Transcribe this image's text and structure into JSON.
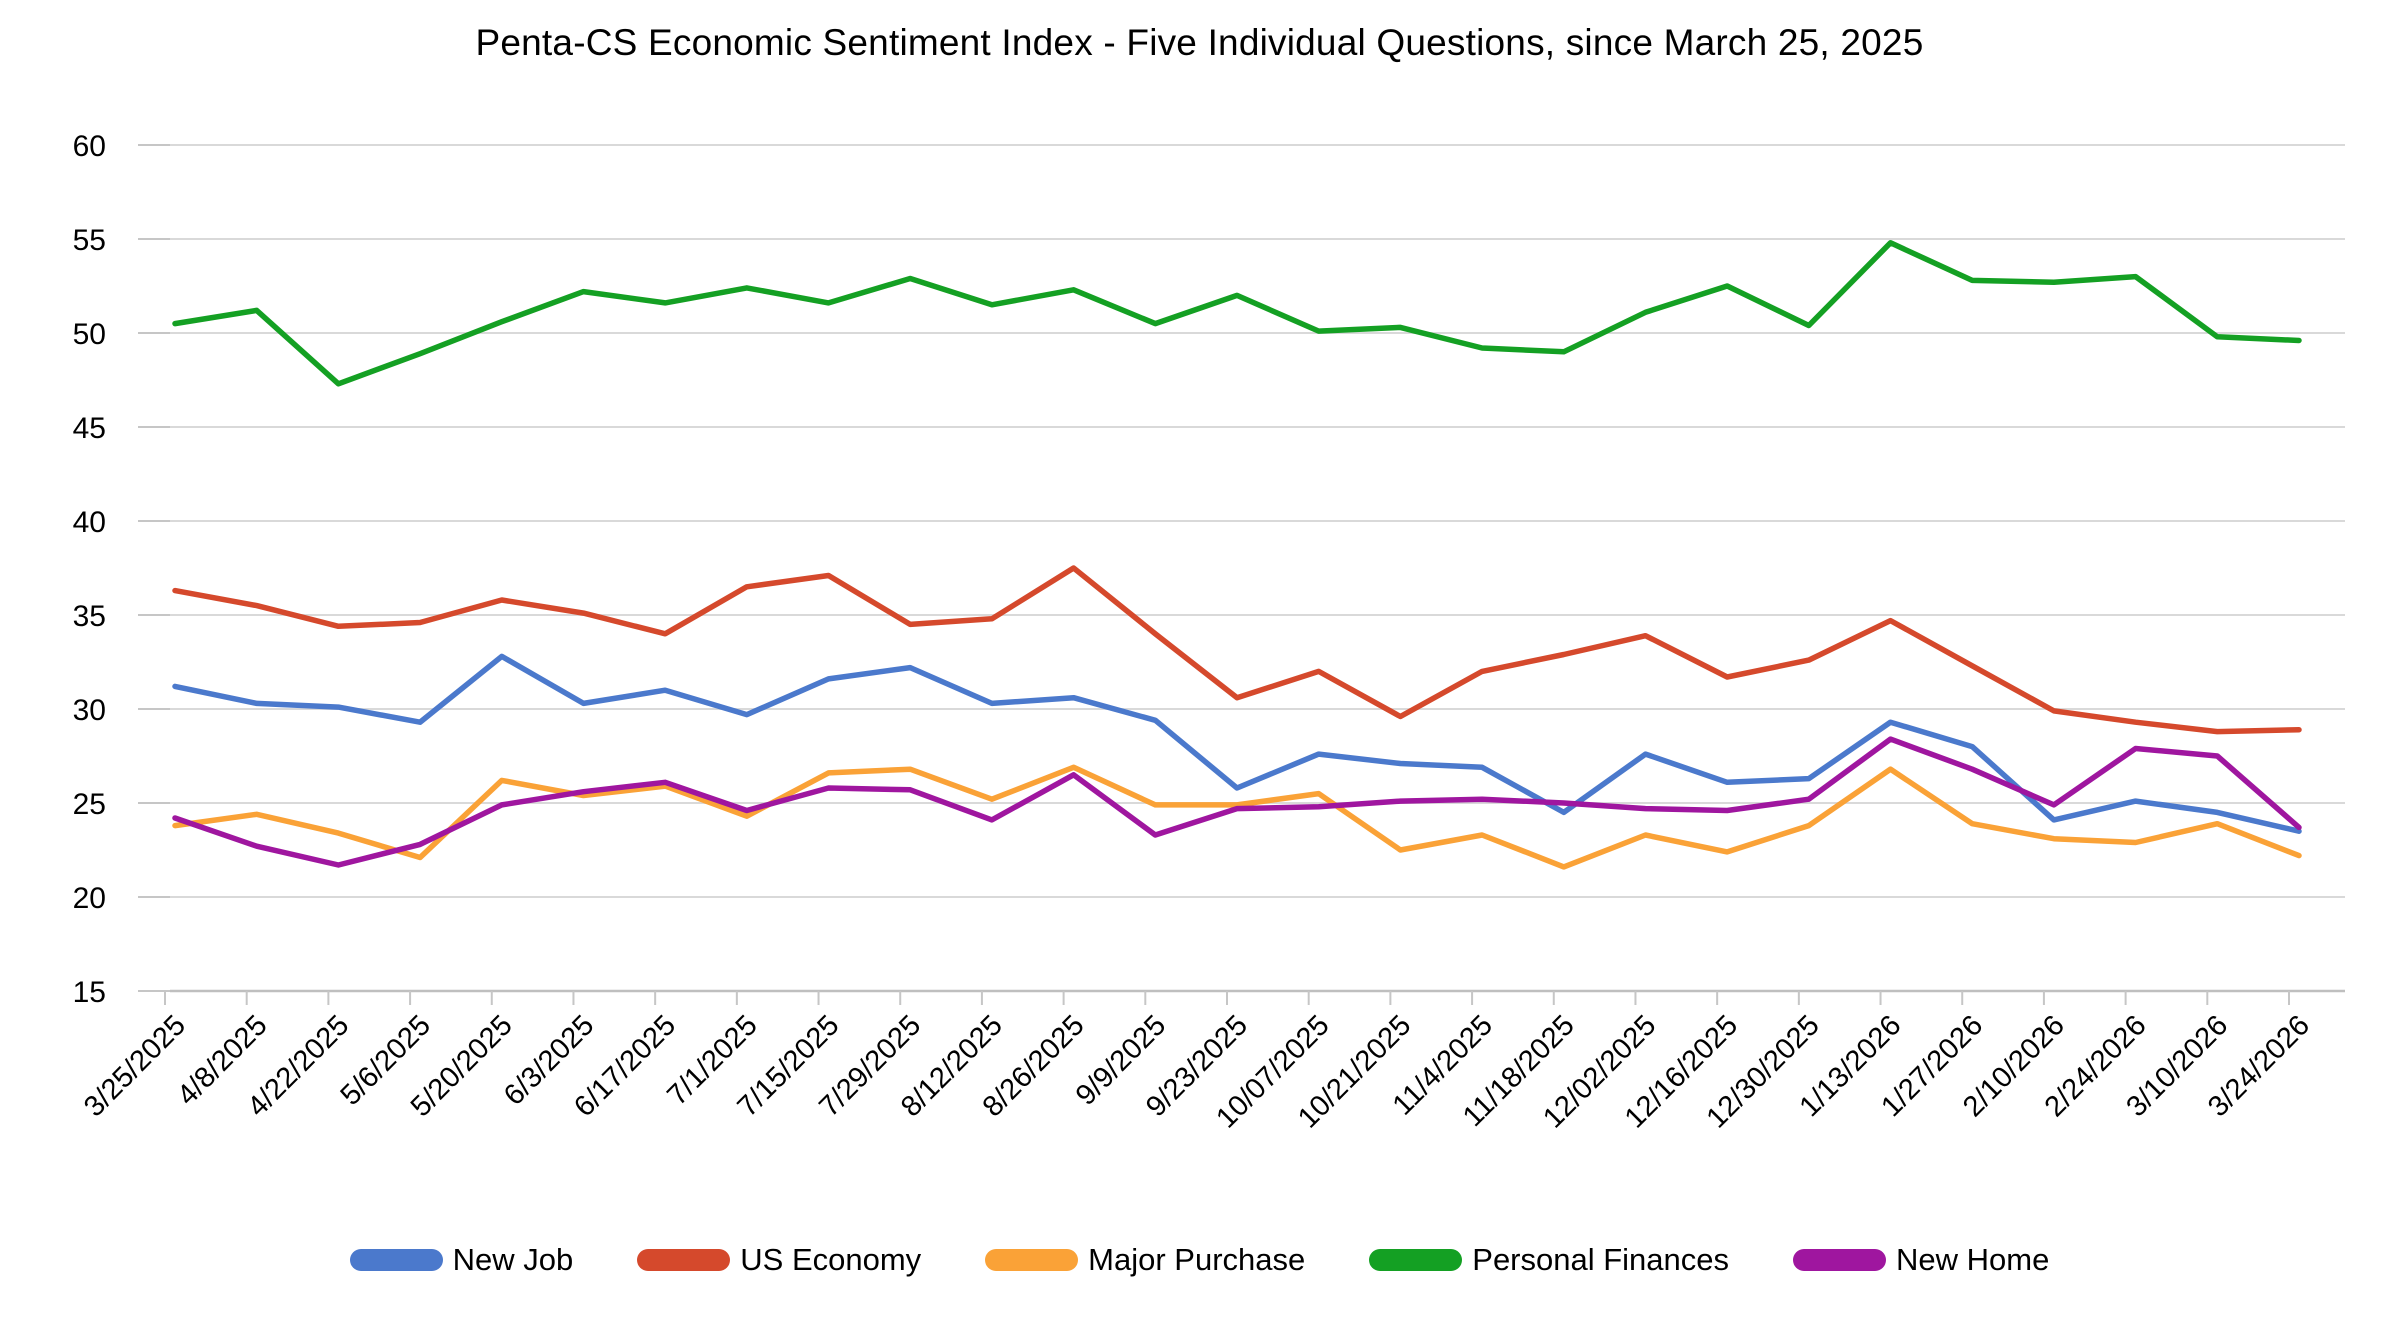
{
  "title": "Penta-CS Economic Sentiment Index - Five Individual Questions, since March 25, 2025",
  "chart_data": {
    "type": "line",
    "title": "Penta-CS Economic Sentiment Index - Five Individual Questions, since March 25, 2025",
    "xlabel": "",
    "ylabel": "",
    "ylim": [
      15,
      60
    ],
    "y_tick_step": 5,
    "y_tick_labels": [
      "60",
      "55",
      "50",
      "45",
      "40",
      "35",
      "30",
      "25",
      "20",
      "15"
    ],
    "grid": true,
    "legend_position": "bottom",
    "categories": [
      "3/25/2025",
      "4/8/2025",
      "4/22/2025",
      "5/6/2025",
      "5/20/2025",
      "6/3/2025",
      "6/17/2025",
      "7/1/2025",
      "7/15/2025",
      "7/29/2025",
      "8/12/2025",
      "8/26/2025",
      "9/9/2025",
      "9/23/2025",
      "10/07/2025",
      "10/21/2025",
      "11/4/2025",
      "11/18/2025",
      "12/02/2025",
      "12/16/2025",
      "12/30/2025",
      "1/13/2026",
      "1/27/2026",
      "2/10/2026",
      "2/24/2026",
      "3/10/2026",
      "3/24/2026"
    ],
    "series": [
      {
        "name": "New Job",
        "color": "#4b79cc",
        "values": [
          31.2,
          30.3,
          30.1,
          29.3,
          32.8,
          30.3,
          31.0,
          29.7,
          31.6,
          32.2,
          30.3,
          30.6,
          29.4,
          25.8,
          27.6,
          27.1,
          26.9,
          24.5,
          27.6,
          26.1,
          26.3,
          29.3,
          28.0,
          24.1,
          25.1,
          24.5,
          23.5
        ]
      },
      {
        "name": "US Economy",
        "color": "#d5492c",
        "values": [
          36.3,
          35.5,
          34.4,
          34.6,
          35.8,
          35.1,
          34.0,
          36.5,
          37.1,
          34.5,
          34.8,
          37.5,
          34.0,
          30.6,
          32.0,
          29.6,
          32.0,
          32.9,
          33.9,
          31.7,
          32.6,
          34.7,
          32.3,
          29.9,
          29.3,
          28.8,
          28.9
        ]
      },
      {
        "name": "Major Purchase",
        "color": "#faa237",
        "values": [
          23.8,
          24.4,
          23.4,
          22.1,
          26.2,
          25.4,
          25.9,
          24.3,
          26.6,
          26.8,
          25.2,
          26.9,
          24.9,
          24.9,
          25.5,
          22.5,
          23.3,
          21.6,
          23.3,
          22.4,
          23.8,
          26.8,
          23.9,
          23.1,
          22.9,
          23.9,
          22.2
        ]
      },
      {
        "name": "Personal Finances",
        "color": "#14a023",
        "values": [
          50.5,
          51.2,
          47.3,
          48.9,
          50.6,
          52.2,
          51.6,
          52.4,
          51.6,
          52.9,
          51.5,
          52.3,
          50.5,
          52.0,
          50.1,
          50.3,
          49.2,
          49.0,
          51.1,
          52.5,
          50.4,
          54.8,
          52.8,
          52.7,
          53.0,
          49.8,
          49.6
        ]
      },
      {
        "name": "New Home",
        "color": "#9f169f",
        "values": [
          24.2,
          22.7,
          21.7,
          22.8,
          24.9,
          25.6,
          26.1,
          24.6,
          25.8,
          25.7,
          24.1,
          26.5,
          23.3,
          24.7,
          24.8,
          25.1,
          25.2,
          25.0,
          24.7,
          24.6,
          25.2,
          28.4,
          26.8,
          24.9,
          27.9,
          27.5,
          23.7
        ]
      }
    ]
  },
  "colors": {
    "gridline": "#d9d9d9",
    "axis_line": "#bfbfbf",
    "tick": "#c6c6c6",
    "text": "#000000",
    "background": "#ffffff"
  }
}
